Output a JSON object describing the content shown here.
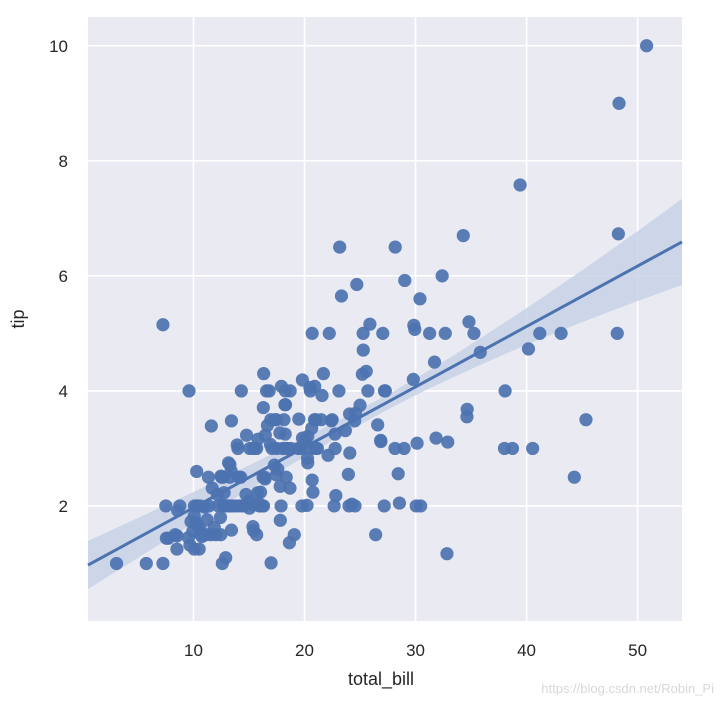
{
  "chart_data": {
    "type": "scatter",
    "xlabel": "total_bill",
    "ylabel": "tip",
    "xlim": [
      0.5,
      54
    ],
    "ylim": [
      0,
      10.5
    ],
    "xticks": [
      10,
      20,
      30,
      40,
      50
    ],
    "yticks": [
      2,
      4,
      6,
      8,
      10
    ],
    "grid": true,
    "colors": {
      "background": "#EAEAF2",
      "grid": "#ffffff",
      "points": "#4C72B0",
      "band": "#C7D2E6"
    },
    "regression": {
      "intercept": 0.92,
      "slope": 0.105,
      "x_range": [
        0.5,
        54
      ],
      "ci_half_width_ends": [
        0.42,
        0.75
      ]
    },
    "points": [
      [
        3.07,
        1.0
      ],
      [
        5.75,
        1.0
      ],
      [
        7.25,
        1.0
      ],
      [
        7.25,
        5.15
      ],
      [
        7.51,
        2.0
      ],
      [
        7.56,
        1.44
      ],
      [
        7.74,
        1.44
      ],
      [
        8.35,
        1.5
      ],
      [
        8.51,
        1.25
      ],
      [
        8.52,
        1.48
      ],
      [
        8.58,
        1.92
      ],
      [
        8.77,
        2.0
      ],
      [
        9.55,
        1.45
      ],
      [
        9.6,
        4.0
      ],
      [
        9.68,
        1.32
      ],
      [
        9.78,
        1.73
      ],
      [
        9.94,
        1.56
      ],
      [
        10.07,
        1.25
      ],
      [
        10.07,
        1.83
      ],
      [
        10.09,
        2.0
      ],
      [
        10.27,
        1.71
      ],
      [
        10.29,
        2.6
      ],
      [
        10.33,
        1.67
      ],
      [
        10.33,
        2.0
      ],
      [
        10.34,
        1.66
      ],
      [
        10.34,
        2.0
      ],
      [
        10.51,
        1.25
      ],
      [
        10.59,
        1.61
      ],
      [
        10.63,
        2.0
      ],
      [
        10.65,
        1.5
      ],
      [
        10.77,
        1.47
      ],
      [
        11.02,
        1.98
      ],
      [
        11.17,
        1.5
      ],
      [
        11.24,
        1.76
      ],
      [
        11.35,
        2.5
      ],
      [
        11.38,
        2.0
      ],
      [
        11.59,
        1.5
      ],
      [
        11.61,
        3.39
      ],
      [
        11.69,
        2.31
      ],
      [
        11.87,
        1.63
      ],
      [
        12.03,
        1.5
      ],
      [
        12.16,
        2.2
      ],
      [
        12.26,
        2.0
      ],
      [
        12.43,
        1.8
      ],
      [
        12.46,
        1.5
      ],
      [
        12.48,
        2.52
      ],
      [
        12.54,
        2.5
      ],
      [
        12.6,
        1.0
      ],
      [
        12.66,
        2.5
      ],
      [
        12.69,
        2.0
      ],
      [
        12.74,
        2.01
      ],
      [
        12.76,
        2.23
      ],
      [
        12.9,
        1.1
      ],
      [
        13.0,
        2.0
      ],
      [
        13.03,
        2.0
      ],
      [
        13.13,
        2.0
      ],
      [
        13.16,
        2.75
      ],
      [
        13.27,
        2.5
      ],
      [
        13.28,
        2.72
      ],
      [
        13.37,
        2.0
      ],
      [
        13.39,
        2.61
      ],
      [
        13.42,
        1.58
      ],
      [
        13.42,
        3.48
      ],
      [
        13.51,
        2.0
      ],
      [
        13.81,
        2.0
      ],
      [
        13.94,
        3.06
      ],
      [
        14.0,
        3.0
      ],
      [
        14.07,
        2.5
      ],
      [
        14.15,
        2.0
      ],
      [
        14.26,
        2.5
      ],
      [
        14.31,
        4.0
      ],
      [
        14.48,
        2.0
      ],
      [
        14.52,
        2.0
      ],
      [
        14.73,
        2.2
      ],
      [
        14.78,
        3.23
      ],
      [
        15.01,
        2.09
      ],
      [
        15.04,
        1.96
      ],
      [
        15.06,
        3.0
      ],
      [
        15.36,
        1.64
      ],
      [
        15.38,
        3.0
      ],
      [
        15.42,
        1.57
      ],
      [
        15.48,
        2.02
      ],
      [
        15.53,
        3.0
      ],
      [
        15.69,
        1.5
      ],
      [
        15.69,
        3.0
      ],
      [
        15.77,
        2.23
      ],
      [
        15.81,
        3.16
      ],
      [
        15.95,
        2.0
      ],
      [
        15.98,
        2.03
      ],
      [
        16.0,
        2.0
      ],
      [
        16.04,
        2.24
      ],
      [
        16.21,
        2.0
      ],
      [
        16.27,
        2.5
      ],
      [
        16.29,
        3.71
      ],
      [
        16.31,
        2.0
      ],
      [
        16.32,
        4.3
      ],
      [
        16.4,
        2.5
      ],
      [
        16.45,
        2.47
      ],
      [
        16.47,
        3.23
      ],
      [
        16.58,
        4.0
      ],
      [
        16.66,
        3.4
      ],
      [
        16.82,
        4.0
      ],
      [
        16.93,
        3.07
      ],
      [
        16.97,
        3.5
      ],
      [
        16.99,
        1.01
      ],
      [
        17.07,
        3.0
      ],
      [
        17.29,
        2.71
      ],
      [
        17.31,
        3.5
      ],
      [
        17.46,
        2.54
      ],
      [
        17.47,
        3.5
      ],
      [
        17.51,
        3.0
      ],
      [
        17.59,
        2.64
      ],
      [
        17.78,
        3.27
      ],
      [
        17.81,
        2.34
      ],
      [
        17.82,
        1.75
      ],
      [
        17.89,
        2.0
      ],
      [
        17.92,
        4.08
      ],
      [
        18.04,
        3.0
      ],
      [
        18.15,
        3.5
      ],
      [
        18.24,
        3.76
      ],
      [
        18.26,
        3.25
      ],
      [
        18.28,
        4.0
      ],
      [
        18.29,
        3.0
      ],
      [
        18.29,
        3.76
      ],
      [
        18.35,
        2.5
      ],
      [
        18.43,
        3.0
      ],
      [
        18.64,
        1.36
      ],
      [
        18.69,
        2.31
      ],
      [
        18.71,
        4.0
      ],
      [
        18.78,
        3.0
      ],
      [
        19.08,
        1.5
      ],
      [
        19.44,
        3.0
      ],
      [
        19.49,
        3.51
      ],
      [
        19.65,
        3.0
      ],
      [
        19.77,
        2.0
      ],
      [
        19.81,
        4.19
      ],
      [
        19.82,
        3.18
      ],
      [
        20.08,
        3.15
      ],
      [
        20.23,
        2.01
      ],
      [
        20.27,
        2.83
      ],
      [
        20.29,
        2.75
      ],
      [
        20.29,
        3.21
      ],
      [
        20.45,
        3.0
      ],
      [
        20.49,
        4.06
      ],
      [
        20.53,
        4.0
      ],
      [
        20.65,
        3.35
      ],
      [
        20.69,
        2.45
      ],
      [
        20.69,
        5.0
      ],
      [
        20.76,
        2.24
      ],
      [
        20.9,
        3.5
      ],
      [
        20.92,
        4.08
      ],
      [
        21.01,
        3.0
      ],
      [
        21.01,
        3.5
      ],
      [
        21.16,
        3.0
      ],
      [
        21.5,
        3.5
      ],
      [
        21.58,
        3.92
      ],
      [
        21.7,
        4.3
      ],
      [
        22.12,
        2.88
      ],
      [
        22.23,
        5.0
      ],
      [
        22.42,
        3.48
      ],
      [
        22.49,
        3.5
      ],
      [
        22.67,
        2.0
      ],
      [
        22.75,
        3.25
      ],
      [
        22.76,
        3.0
      ],
      [
        22.82,
        2.18
      ],
      [
        23.1,
        4.0
      ],
      [
        23.17,
        6.5
      ],
      [
        23.33,
        5.65
      ],
      [
        23.68,
        3.31
      ],
      [
        23.95,
        2.55
      ],
      [
        24.01,
        2.0
      ],
      [
        24.06,
        3.6
      ],
      [
        24.08,
        2.92
      ],
      [
        24.27,
        2.03
      ],
      [
        24.52,
        3.48
      ],
      [
        24.55,
        2.0
      ],
      [
        24.59,
        3.61
      ],
      [
        24.71,
        5.85
      ],
      [
        25.0,
        3.75
      ],
      [
        25.21,
        4.29
      ],
      [
        25.28,
        5.0
      ],
      [
        25.29,
        4.71
      ],
      [
        25.56,
        4.34
      ],
      [
        25.71,
        4.0
      ],
      [
        25.89,
        5.16
      ],
      [
        26.41,
        1.5
      ],
      [
        26.59,
        3.41
      ],
      [
        26.86,
        3.14
      ],
      [
        26.88,
        3.12
      ],
      [
        27.05,
        5.0
      ],
      [
        27.18,
        2.0
      ],
      [
        27.2,
        4.0
      ],
      [
        27.28,
        4.0
      ],
      [
        28.15,
        3.0
      ],
      [
        28.17,
        6.5
      ],
      [
        28.44,
        2.56
      ],
      [
        28.55,
        2.05
      ],
      [
        28.97,
        3.0
      ],
      [
        29.03,
        5.92
      ],
      [
        29.8,
        4.2
      ],
      [
        29.85,
        5.14
      ],
      [
        29.93,
        5.07
      ],
      [
        30.06,
        2.0
      ],
      [
        30.14,
        3.09
      ],
      [
        30.4,
        5.6
      ],
      [
        30.46,
        2.0
      ],
      [
        31.27,
        5.0
      ],
      [
        31.71,
        4.5
      ],
      [
        31.85,
        3.18
      ],
      [
        32.4,
        6.0
      ],
      [
        32.68,
        5.0
      ],
      [
        32.83,
        1.17
      ],
      [
        32.9,
        3.11
      ],
      [
        34.3,
        6.7
      ],
      [
        34.63,
        3.55
      ],
      [
        34.65,
        3.68
      ],
      [
        34.81,
        5.2
      ],
      [
        35.26,
        5.0
      ],
      [
        35.83,
        4.67
      ],
      [
        38.01,
        3.0
      ],
      [
        38.07,
        4.0
      ],
      [
        38.73,
        3.0
      ],
      [
        39.42,
        7.58
      ],
      [
        40.17,
        4.73
      ],
      [
        40.55,
        3.0
      ],
      [
        41.19,
        5.0
      ],
      [
        43.11,
        5.0
      ],
      [
        44.3,
        2.5
      ],
      [
        45.35,
        3.5
      ],
      [
        48.17,
        5.0
      ],
      [
        48.27,
        6.73
      ],
      [
        48.33,
        9.0
      ],
      [
        50.81,
        10.0
      ]
    ]
  },
  "watermark": "https://blog.csdn.net/Robin_Pi"
}
